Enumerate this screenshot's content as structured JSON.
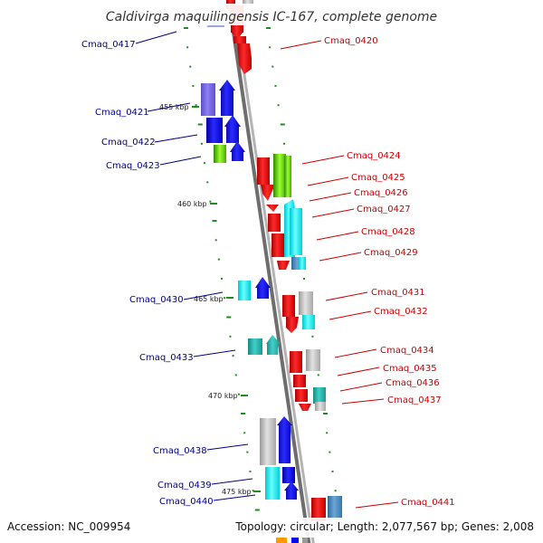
{
  "title": "Caldivirga maquilingensis IC-167, complete genome",
  "footer": {
    "accession": "Accession: NC_009954",
    "summary": "Topology: circular; Length: 2,077,567 bp; Genes: 2,008"
  },
  "kbp_labels": [
    "455 kbp",
    "460 kbp",
    "465 kbp",
    "470 kbp",
    "475 kbp"
  ],
  "left_labels": [
    "Cmaq_0417",
    "Cmaq_0421",
    "Cmaq_0422",
    "Cmaq_0423",
    "Cmaq_0430",
    "Cmaq_0433",
    "Cmaq_0438",
    "Cmaq_0439",
    "Cmaq_0440"
  ],
  "right_labels": [
    "Cmaq_0420",
    "Cmaq_0424",
    "Cmaq_0425",
    "Cmaq_0426",
    "Cmaq_0427",
    "Cmaq_0428",
    "Cmaq_0429",
    "Cmaq_0431",
    "Cmaq_0432",
    "Cmaq_0434",
    "Cmaq_0435",
    "Cmaq_0436",
    "Cmaq_0437",
    "Cmaq_0441"
  ],
  "colors": {
    "reverse_label": "#00008b",
    "forward_label": "#cc0000",
    "red": "#ff0000",
    "blue": "#0000ff",
    "slate": "#7b68ee",
    "cyan": "#00ffff",
    "teal": "#20b2aa",
    "grey": "#c0c0c0",
    "green": "#7cfc00",
    "steel": "#4682b4",
    "tick": "#228b22",
    "backbone": "#808080"
  }
}
